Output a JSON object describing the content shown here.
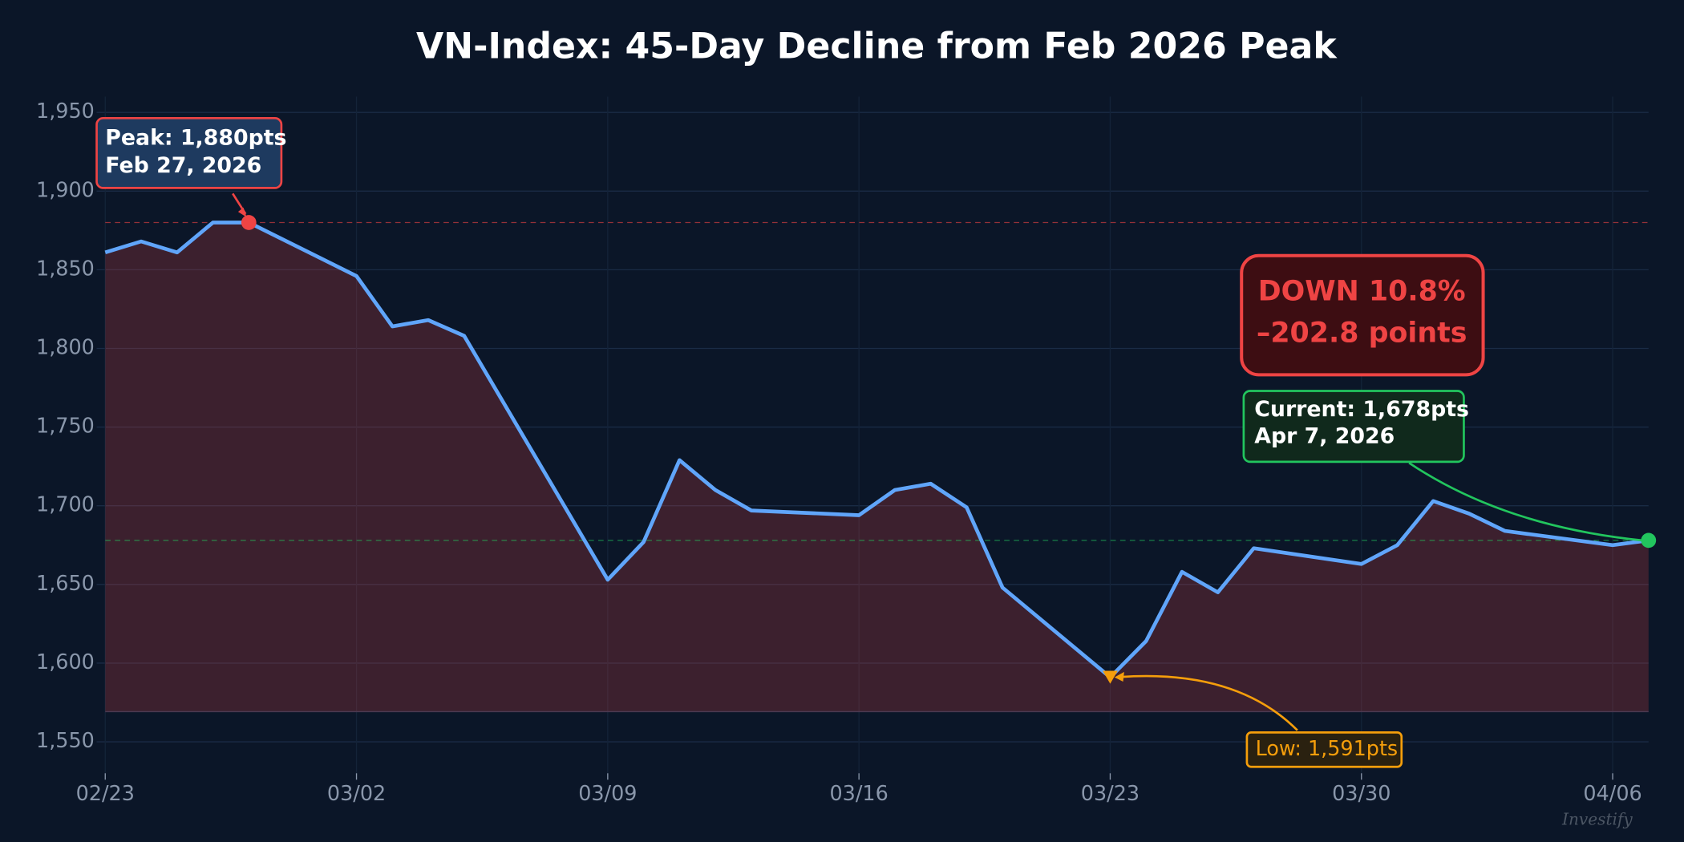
{
  "chart_data": {
    "type": "line",
    "title": "VN-Index: 45-Day Decline from Feb 2026 Peak",
    "x": [
      "02/23",
      "02/24",
      "02/25",
      "02/26",
      "02/27",
      "03/02",
      "03/03",
      "03/04",
      "03/05",
      "03/09",
      "03/10",
      "03/11",
      "03/12",
      "03/13",
      "03/16",
      "03/17",
      "03/18",
      "03/19",
      "03/20",
      "03/23",
      "03/24",
      "03/25",
      "03/26",
      "03/27",
      "03/30",
      "03/31",
      "04/01",
      "04/02",
      "04/03",
      "04/06",
      "04/07"
    ],
    "series": [
      {
        "name": "VN-Index",
        "color": "#60a5fa",
        "values": [
          1861,
          1868,
          1861,
          1880,
          1880,
          1846,
          1814,
          1818,
          1808,
          1653,
          1677,
          1729,
          1710,
          1697,
          1694,
          1710,
          1714,
          1699,
          1648,
          1591,
          1614,
          1658,
          1645,
          1673,
          1663,
          1675,
          1703,
          1695,
          1684,
          1675,
          1678
        ]
      }
    ],
    "area_color": "rgba(239,68,68,0.22)",
    "xlim": [
      "02/23",
      "04/07"
    ],
    "xticks": [
      "02/23",
      "03/02",
      "03/09",
      "03/16",
      "03/23",
      "03/30",
      "04/06"
    ],
    "ylim": [
      1530,
      1960
    ],
    "yticks": [
      {
        "value": 1550,
        "label": "1,550"
      },
      {
        "value": 1600,
        "label": "1,600"
      },
      {
        "value": 1650,
        "label": "1,650"
      },
      {
        "value": 1700,
        "label": "1,700"
      },
      {
        "value": 1750,
        "label": "1,750"
      },
      {
        "value": 1800,
        "label": "1,800"
      },
      {
        "value": 1850,
        "label": "1,850"
      },
      {
        "value": 1900,
        "label": "1,900"
      },
      {
        "value": 1950,
        "label": "1,950"
      }
    ],
    "grid": true,
    "reference_lines": [
      {
        "value": 1880,
        "color": "#ef4444"
      },
      {
        "value": 1678,
        "color": "#22c55e"
      }
    ],
    "annotations": {
      "peak": {
        "lines": [
          "Peak: 1,880pts",
          "Feb 27, 2026"
        ],
        "x": "02/27",
        "y": 1880,
        "color": "#ef4444"
      },
      "low": {
        "lines": [
          "Low: 1,591pts"
        ],
        "x": "03/23",
        "y": 1591,
        "color": "#f59e0b"
      },
      "current": {
        "lines": [
          "Current: 1,678pts",
          "Apr 7, 2026"
        ],
        "x": "04/07",
        "y": 1678,
        "color": "#22c55e"
      },
      "change": {
        "lines": [
          "DOWN 10.8%",
          "–202.8 points"
        ],
        "color": "#ef4444"
      }
    },
    "watermark": "Investify"
  }
}
